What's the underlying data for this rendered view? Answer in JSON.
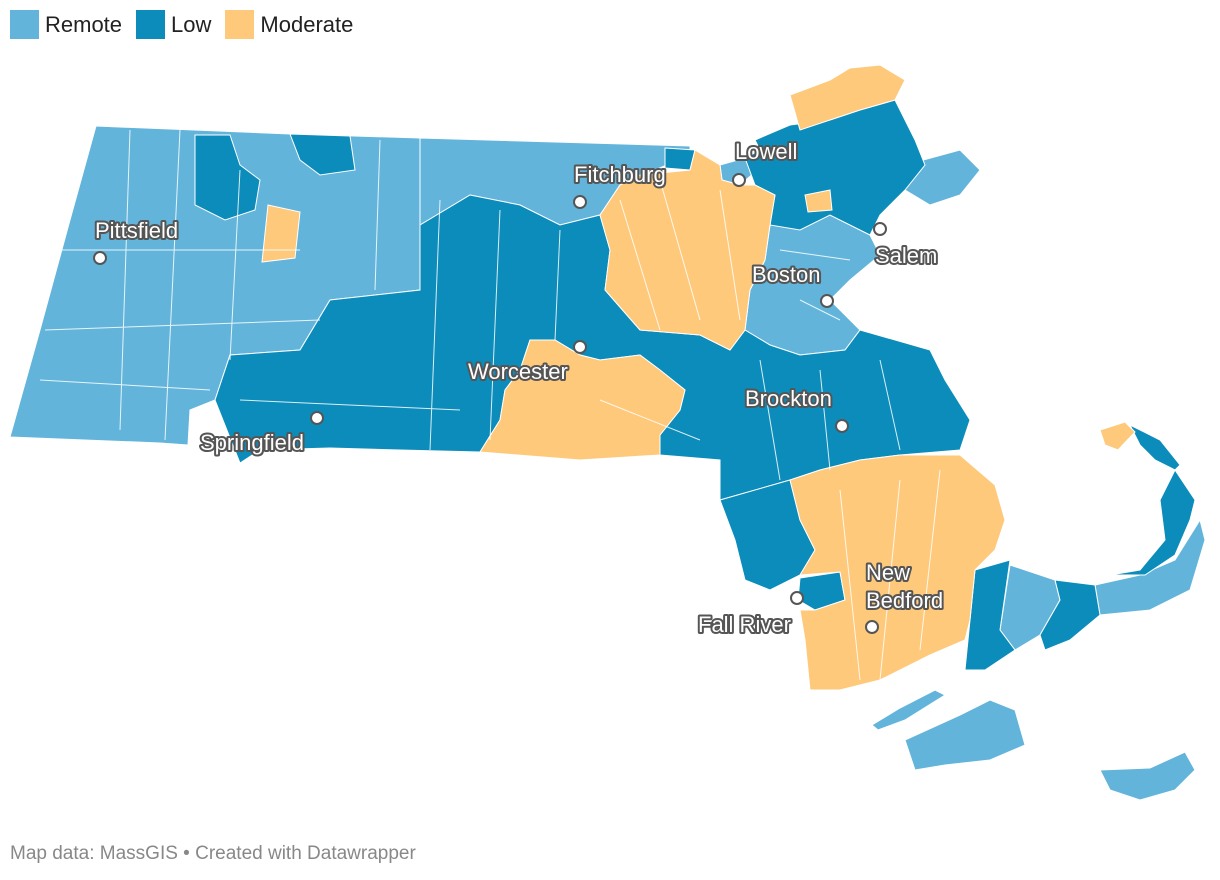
{
  "legend": [
    {
      "label": "Remote",
      "color": "#62b4db"
    },
    {
      "label": "Low",
      "color": "#0b8cba"
    },
    {
      "label": "Moderate",
      "color": "#fec97b"
    }
  ],
  "cities": [
    {
      "name": "Pittsfield"
    },
    {
      "name": "Fitchburg"
    },
    {
      "name": "Lowell"
    },
    {
      "name": "Salem"
    },
    {
      "name": "Boston"
    },
    {
      "name": "Worcester"
    },
    {
      "name": "Springfield"
    },
    {
      "name": "Brockton"
    },
    {
      "name": "New Bedford"
    },
    {
      "name": "Fall River"
    }
  ],
  "footer": "Map data: MassGIS • Created with Datawrapper"
}
